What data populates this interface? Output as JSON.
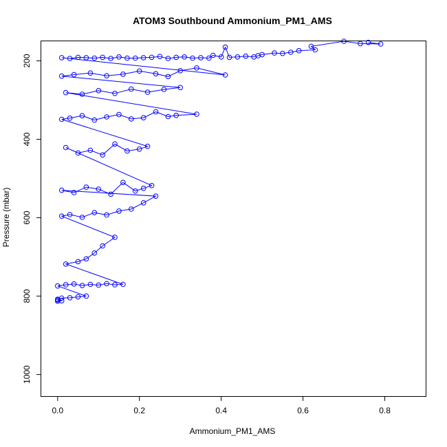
{
  "chart_data": {
    "type": "scatter",
    "title": "ATOM3 Southbound Ammonium_PM1_AMS",
    "xlabel": "Ammonium_PM1_AMS",
    "ylabel": "Pressure (mbar)",
    "xlim": [
      -0.04,
      0.9
    ],
    "ylim": [
      1055,
      150
    ],
    "y_reversed": true,
    "xticks": [
      0.0,
      0.2,
      0.4,
      0.6,
      0.8
    ],
    "xtick_labels": [
      "0.0",
      "0.2",
      "0.4",
      "0.6",
      "0.8"
    ],
    "yticks": [
      200,
      400,
      600,
      800,
      1000
    ],
    "ytick_labels": [
      "200",
      "400",
      "600",
      "800",
      "1000"
    ],
    "grid": false,
    "series": [
      {
        "color": "#0000ff",
        "marker": "open-circle",
        "line": true,
        "points": [
          [
            0.76,
            153
          ],
          [
            0.79,
            157
          ],
          [
            0.74,
            156
          ],
          [
            0.7,
            150
          ],
          [
            0.62,
            163
          ],
          [
            0.63,
            172
          ],
          [
            0.59,
            174
          ],
          [
            0.57,
            178
          ],
          [
            0.55,
            181
          ],
          [
            0.53,
            180
          ],
          [
            0.5,
            184
          ],
          [
            0.49,
            187
          ],
          [
            0.48,
            190
          ],
          [
            0.46,
            188
          ],
          [
            0.44,
            190
          ],
          [
            0.42,
            191
          ],
          [
            0.41,
            165
          ],
          [
            0.4,
            190
          ],
          [
            0.38,
            186
          ],
          [
            0.37,
            193
          ],
          [
            0.35,
            192
          ],
          [
            0.33,
            193
          ],
          [
            0.31,
            190
          ],
          [
            0.29,
            191
          ],
          [
            0.27,
            194
          ],
          [
            0.25,
            189
          ],
          [
            0.23,
            191
          ],
          [
            0.21,
            192
          ],
          [
            0.19,
            193
          ],
          [
            0.17,
            193
          ],
          [
            0.15,
            190
          ],
          [
            0.13,
            194
          ],
          [
            0.11,
            191
          ],
          [
            0.09,
            193
          ],
          [
            0.07,
            192
          ],
          [
            0.05,
            191
          ],
          [
            0.03,
            194
          ],
          [
            0.01,
            192
          ],
          [
            0.41,
            236
          ],
          [
            0.34,
            218
          ],
          [
            0.3,
            225
          ],
          [
            0.27,
            240
          ],
          [
            0.24,
            233
          ],
          [
            0.2,
            226
          ],
          [
            0.16,
            234
          ],
          [
            0.12,
            238
          ],
          [
            0.08,
            231
          ],
          [
            0.04,
            235
          ],
          [
            0.01,
            239
          ],
          [
            0.3,
            268
          ],
          [
            0.26,
            273
          ],
          [
            0.22,
            280
          ],
          [
            0.18,
            272
          ],
          [
            0.14,
            283
          ],
          [
            0.1,
            276
          ],
          [
            0.06,
            285
          ],
          [
            0.02,
            281
          ],
          [
            0.34,
            336
          ],
          [
            0.29,
            339
          ],
          [
            0.27,
            342
          ],
          [
            0.24,
            330
          ],
          [
            0.21,
            345
          ],
          [
            0.18,
            348
          ],
          [
            0.15,
            337
          ],
          [
            0.12,
            343
          ],
          [
            0.09,
            351
          ],
          [
            0.06,
            340
          ],
          [
            0.03,
            346
          ],
          [
            0.01,
            349
          ],
          [
            0.22,
            418
          ],
          [
            0.2,
            425
          ],
          [
            0.17,
            430
          ],
          [
            0.14,
            412
          ],
          [
            0.11,
            440
          ],
          [
            0.08,
            428
          ],
          [
            0.05,
            435
          ],
          [
            0.02,
            421
          ],
          [
            0.23,
            518
          ],
          [
            0.21,
            525
          ],
          [
            0.19,
            532
          ],
          [
            0.16,
            510
          ],
          [
            0.13,
            540
          ],
          [
            0.1,
            527
          ],
          [
            0.07,
            522
          ],
          [
            0.04,
            536
          ],
          [
            0.01,
            530
          ],
          [
            0.24,
            545
          ],
          [
            0.21,
            562
          ],
          [
            0.18,
            578
          ],
          [
            0.15,
            583
          ],
          [
            0.12,
            593
          ],
          [
            0.09,
            587
          ],
          [
            0.06,
            599
          ],
          [
            0.03,
            592
          ],
          [
            0.01,
            596
          ],
          [
            0.14,
            650
          ],
          [
            0.11,
            672
          ],
          [
            0.09,
            690
          ],
          [
            0.07,
            705
          ],
          [
            0.05,
            712
          ],
          [
            0.02,
            718
          ],
          [
            0.16,
            770
          ],
          [
            0.14,
            771
          ],
          [
            0.12,
            768
          ],
          [
            0.1,
            772
          ],
          [
            0.08,
            770
          ],
          [
            0.06,
            773
          ],
          [
            0.04,
            769
          ],
          [
            0.02,
            771
          ],
          [
            0.0,
            774
          ],
          [
            0.07,
            800
          ],
          [
            0.05,
            802
          ],
          [
            0.03,
            804
          ],
          [
            0.01,
            805
          ],
          [
            0.0,
            808
          ],
          [
            0.0,
            810
          ],
          [
            0.01,
            812
          ],
          [
            0.0,
            813
          ]
        ]
      }
    ]
  }
}
